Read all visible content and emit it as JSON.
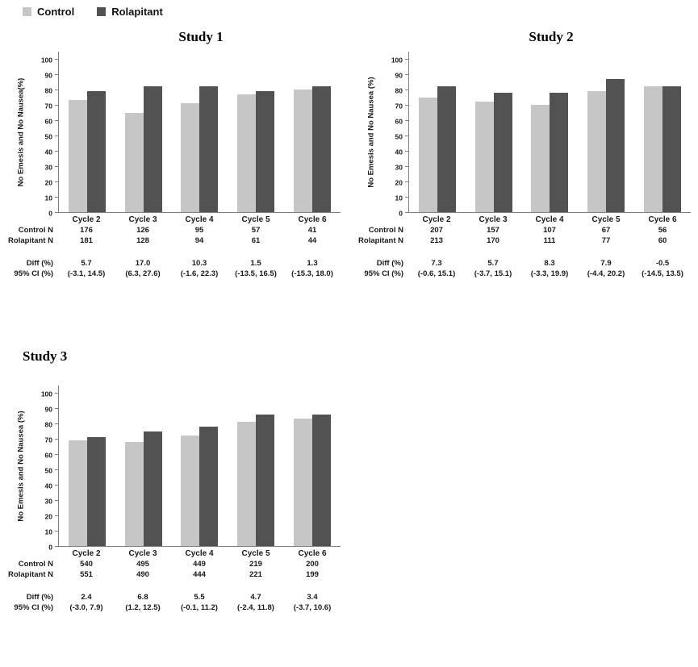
{
  "legend": {
    "items": [
      {
        "label": "Control",
        "color": "#c6c6c6"
      },
      {
        "label": "Rolapitant",
        "color": "#525252"
      }
    ]
  },
  "chart_data": [
    {
      "type": "bar",
      "title": "Study 1",
      "ylabel": "No Emesis and No Nausea(%)",
      "xlabel": "",
      "ylim": [
        0,
        100
      ],
      "yticks": [
        0,
        10,
        20,
        30,
        40,
        50,
        60,
        70,
        80,
        90,
        100
      ],
      "grid": false,
      "legend_position": "top-left",
      "categories": [
        "Cycle 2",
        "Cycle 3",
        "Cycle 4",
        "Cycle 5",
        "Cycle 6"
      ],
      "series": [
        {
          "name": "Control",
          "color": "#c6c6c6",
          "values": [
            73,
            65,
            71,
            77,
            80
          ]
        },
        {
          "name": "Rolapitant",
          "color": "#525252",
          "values": [
            79,
            82,
            82,
            79,
            82
          ]
        }
      ],
      "table": [
        {
          "label": "Control N",
          "values": [
            "176",
            "126",
            "95",
            "57",
            "41"
          ]
        },
        {
          "label": "Rolapitant N",
          "values": [
            "181",
            "128",
            "94",
            "61",
            "44"
          ]
        },
        {
          "label": "Diff (%)",
          "values": [
            "5.7",
            "17.0",
            "10.3",
            "1.5",
            "1.3"
          ],
          "gap_before": true
        },
        {
          "label": "95% CI (%)",
          "values": [
            "(-3.1, 14.5)",
            "(6.3, 27.6)",
            "(-1.6, 22.3)",
            "(-13.5, 16.5)",
            "(-15.3, 18.0)"
          ]
        }
      ]
    },
    {
      "type": "bar",
      "title": "Study 2",
      "ylabel": "No Emesis and No Nausea (%)",
      "xlabel": "",
      "ylim": [
        0,
        100
      ],
      "yticks": [
        0,
        10,
        20,
        30,
        40,
        50,
        60,
        70,
        80,
        90,
        100
      ],
      "grid": false,
      "legend_position": "top-left",
      "categories": [
        "Cycle 2",
        "Cycle 3",
        "Cycle 4",
        "Cycle 5",
        "Cycle 6"
      ],
      "series": [
        {
          "name": "Control",
          "color": "#c6c6c6",
          "values": [
            75,
            72,
            70,
            79,
            82
          ]
        },
        {
          "name": "Rolapitant",
          "color": "#525252",
          "values": [
            82,
            78,
            78,
            87,
            82
          ]
        }
      ],
      "table": [
        {
          "label": "Control N",
          "values": [
            "207",
            "157",
            "107",
            "67",
            "56"
          ]
        },
        {
          "label": "Rolapitant N",
          "values": [
            "213",
            "170",
            "111",
            "77",
            "60"
          ]
        },
        {
          "label": "Diff (%)",
          "values": [
            "7.3",
            "5.7",
            "8.3",
            "7.9",
            "-0.5"
          ],
          "gap_before": true
        },
        {
          "label": "95% CI (%)",
          "values": [
            "(-0.6, 15.1)",
            "(-3.7, 15.1)",
            "(-3.3, 19.9)",
            "(-4.4, 20.2)",
            "(-14.5, 13.5)"
          ]
        }
      ]
    },
    {
      "type": "bar",
      "title": "Study 3",
      "ylabel": "No Emesis and No Nausea (%)",
      "xlabel": "",
      "ylim": [
        0,
        100
      ],
      "yticks": [
        0,
        10,
        20,
        30,
        40,
        50,
        60,
        70,
        80,
        90,
        100
      ],
      "grid": false,
      "legend_position": "top-left",
      "categories": [
        "Cycle 2",
        "Cycle 3",
        "Cycle 4",
        "Cycle 5",
        "Cycle 6"
      ],
      "series": [
        {
          "name": "Control",
          "color": "#c6c6c6",
          "values": [
            69,
            68,
            72,
            81,
            83
          ]
        },
        {
          "name": "Rolapitant",
          "color": "#525252",
          "values": [
            71,
            75,
            78,
            86,
            86
          ]
        }
      ],
      "table": [
        {
          "label": "Control N",
          "values": [
            "540",
            "495",
            "449",
            "219",
            "200"
          ]
        },
        {
          "label": "Rolapitant N",
          "values": [
            "551",
            "490",
            "444",
            "221",
            "199"
          ]
        },
        {
          "label": "Diff (%)",
          "values": [
            "2.4",
            "6.8",
            "5.5",
            "4.7",
            "3.4"
          ],
          "gap_before": true
        },
        {
          "label": "95% CI (%)",
          "values": [
            "(-3.0, 7.9)",
            "(1.2, 12.5)",
            "(-0.1, 11.2)",
            "(-2.4, 11.8)",
            "(-3.7, 10.6)"
          ]
        }
      ]
    }
  ]
}
